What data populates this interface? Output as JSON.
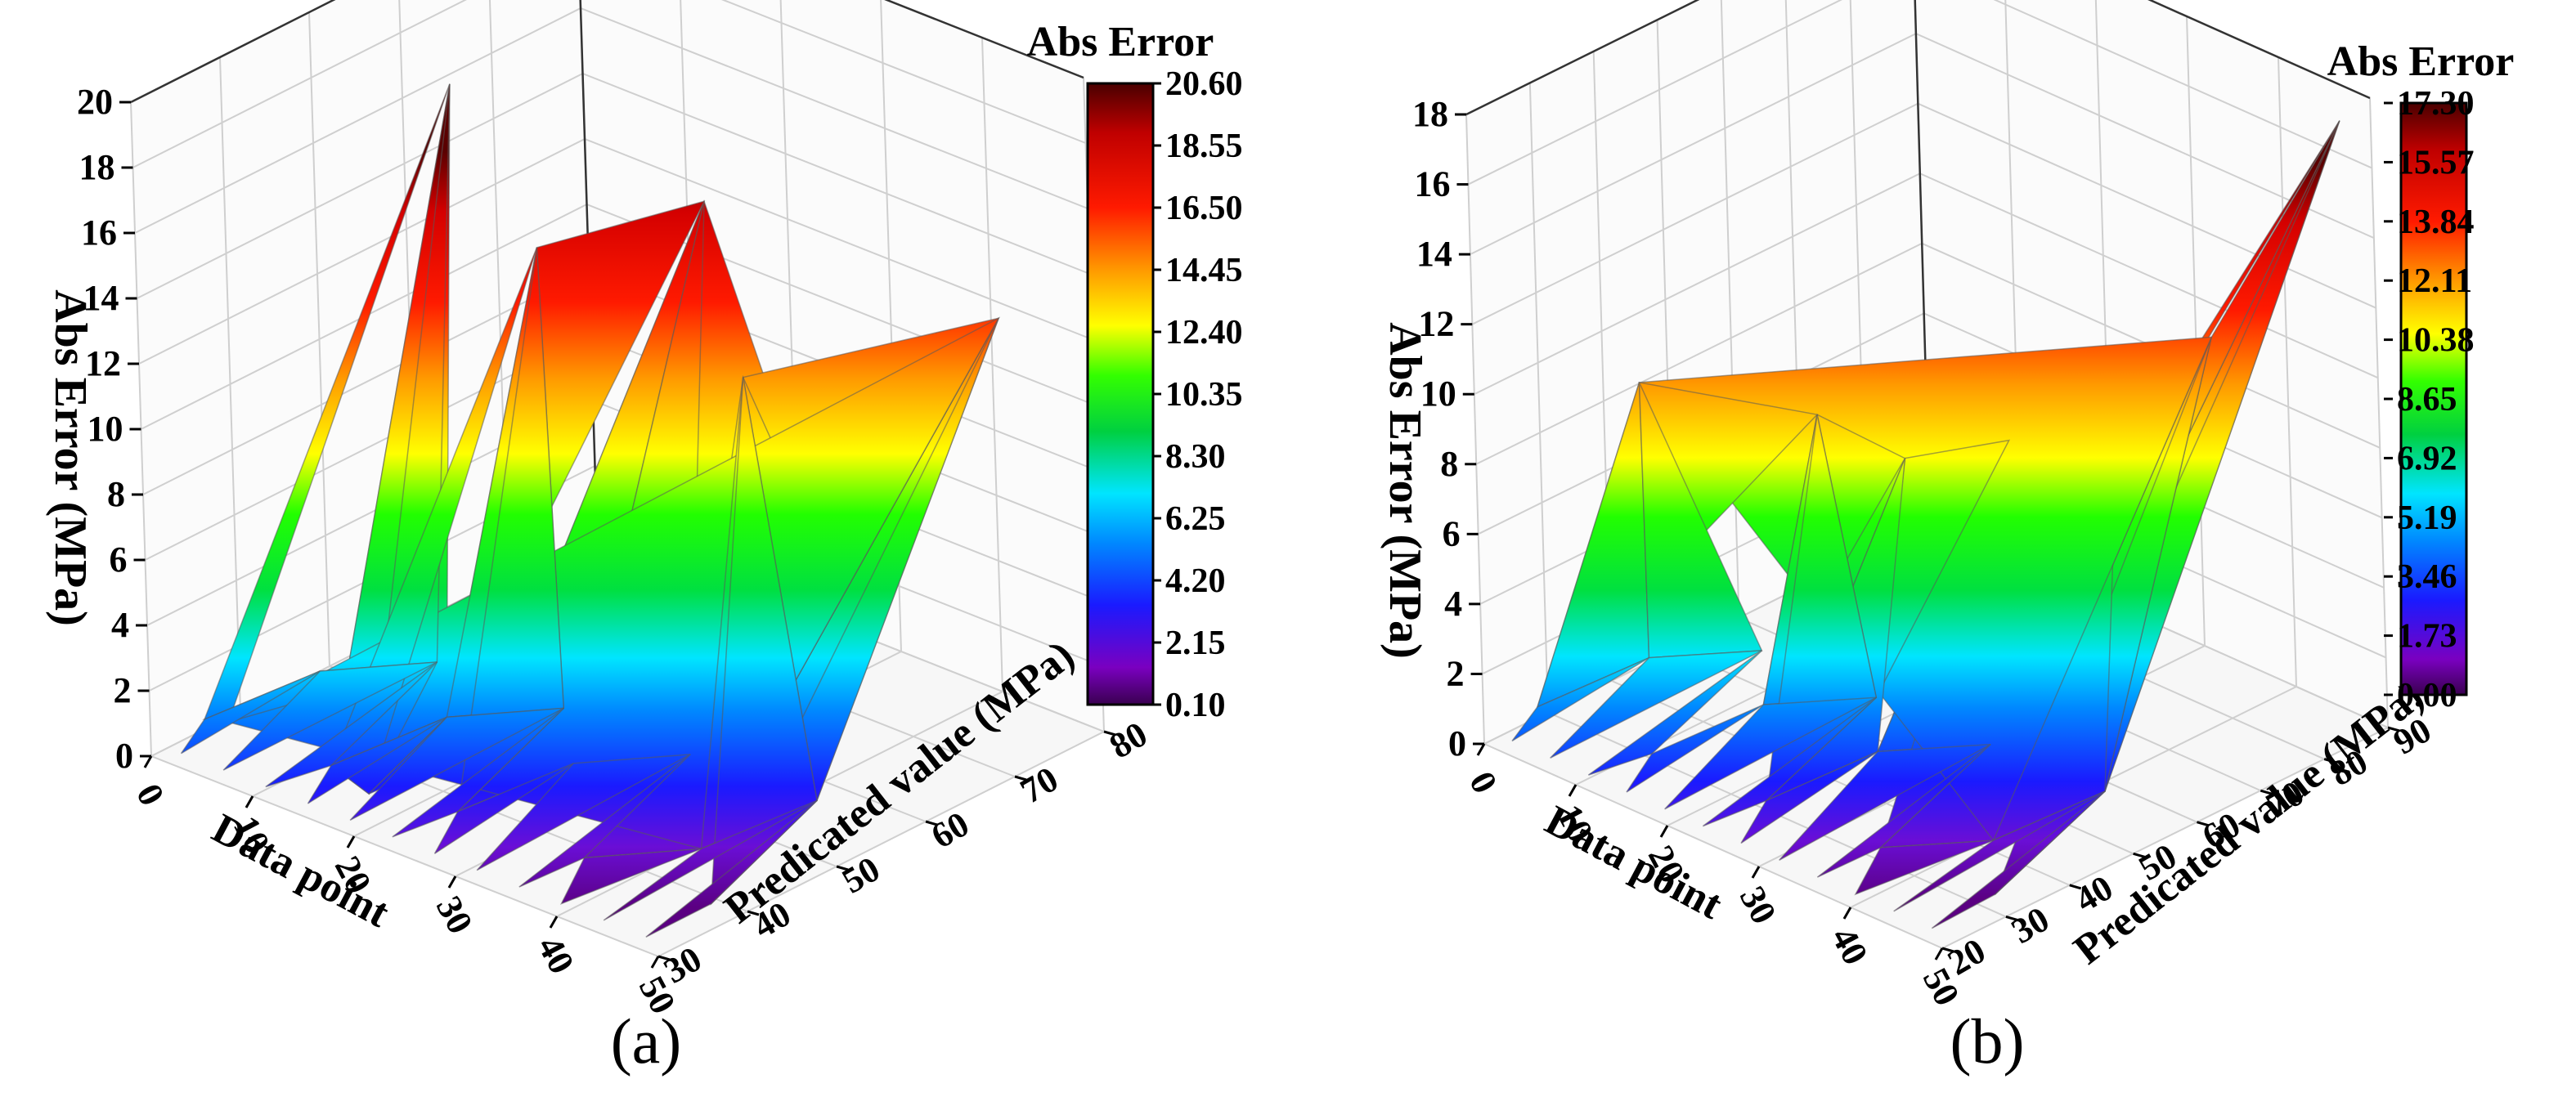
{
  "chart_data": [
    {
      "type": "surface",
      "caption": "(a)",
      "title": "",
      "colorbar_title": "Abs Error",
      "colorbar_labels": [
        "20.60",
        "18.55",
        "16.50",
        "14.45",
        "12.40",
        "10.35",
        "8.30",
        "6.25",
        "4.20",
        "2.15",
        "0.10"
      ],
      "zlabel": "Abs Error (MPa)",
      "xlabel": "Data point",
      "ylabel": "Predicated value (MPa)",
      "xlim": [
        0,
        50
      ],
      "ylim": [
        30,
        80
      ],
      "zlim": [
        0,
        20
      ],
      "x_ticks": [
        "0",
        "10",
        "20",
        "30",
        "40",
        "50"
      ],
      "y_ticks": [
        "30",
        "40",
        "50",
        "60",
        "70",
        "80"
      ],
      "z_ticks": [
        "0",
        "2",
        "4",
        "6",
        "8",
        "10",
        "12",
        "14",
        "16",
        "18",
        "20"
      ],
      "peaks": [
        {
          "x": 6,
          "y": 32,
          "z": 1.5
        },
        {
          "x": 12,
          "y": 52,
          "z": 19
        },
        {
          "x": 18,
          "y": 34,
          "z": 0.5
        },
        {
          "x": 22,
          "y": 50,
          "z": 15.5
        },
        {
          "x": 28,
          "y": 62,
          "z": 16
        },
        {
          "x": 36,
          "y": 66,
          "z": 5
        },
        {
          "x": 44,
          "y": 48,
          "z": 14.5
        },
        {
          "x": 48,
          "y": 72,
          "z": 13.5
        }
      ]
    },
    {
      "type": "surface",
      "caption": "(b)",
      "title": "",
      "colorbar_title": "Abs Error",
      "colorbar_labels": [
        "17.30",
        "15.57",
        "13.84",
        "12.11",
        "10.38",
        "8.65",
        "6.92",
        "5.19",
        "3.46",
        "1.73",
        "0.00"
      ],
      "zlabel": "Abs Error (MPa)",
      "xlabel": "Data point",
      "ylabel": "Predicated value (MPa)",
      "xlim": [
        0,
        50
      ],
      "ylim": [
        20,
        90
      ],
      "zlim": [
        0,
        18
      ],
      "x_ticks": [
        "0",
        "10",
        "20",
        "30",
        "40",
        "50"
      ],
      "y_ticks": [
        "20",
        "30",
        "40",
        "50",
        "60",
        "70",
        "80",
        "90"
      ],
      "z_ticks": [
        "0",
        "2",
        "4",
        "6",
        "8",
        "10",
        "12",
        "14",
        "16",
        "18"
      ],
      "peaks": [
        {
          "x": 4,
          "y": 40,
          "z": 9
        },
        {
          "x": 20,
          "y": 45,
          "z": 9.5
        },
        {
          "x": 26,
          "y": 50,
          "z": 8.5
        },
        {
          "x": 34,
          "y": 55,
          "z": 9.5
        },
        {
          "x": 42,
          "y": 60,
          "z": 8.5
        },
        {
          "x": 48,
          "y": 88,
          "z": 17.3
        },
        {
          "x": 46,
          "y": 70,
          "z": 12.5
        }
      ]
    }
  ]
}
